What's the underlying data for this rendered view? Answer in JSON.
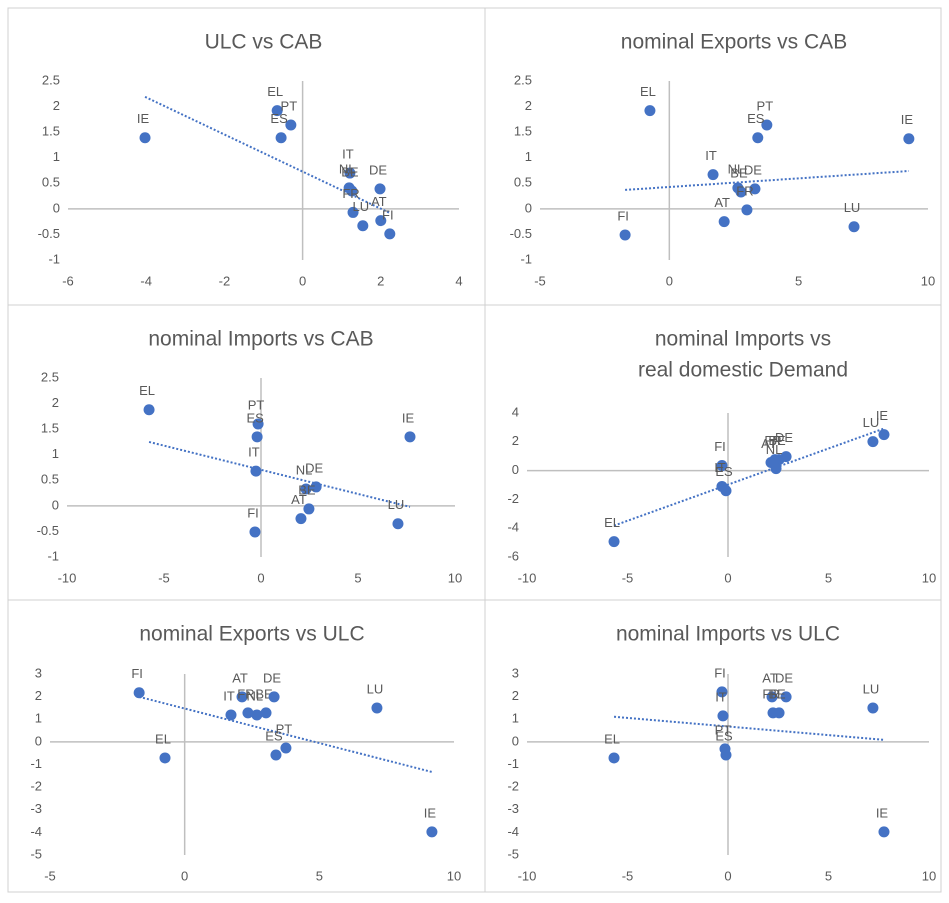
{
  "chart_data": [
    {
      "type": "scatter",
      "title": [
        "ULC vs CAB"
      ],
      "color": "#4472c4",
      "trend_color": "#4472c4",
      "labels": [
        "IE",
        "EL",
        "PT",
        "ES",
        "IT",
        "NL",
        "BE",
        "DE",
        "FR",
        "LU",
        "AT",
        "FI"
      ],
      "x": [
        -4.03,
        -0.65,
        -0.3,
        -0.55,
        1.21,
        1.19,
        1.26,
        1.98,
        1.29,
        1.54,
        2.0,
        2.23
      ],
      "y": [
        1.39,
        1.92,
        1.64,
        1.39,
        0.7,
        0.41,
        0.35,
        0.39,
        -0.07,
        -0.33,
        -0.23,
        -0.49
      ],
      "trend": {
        "x": [
          -4.03,
          2.23
        ],
        "y": [
          2.19,
          -0.08
        ]
      },
      "xlim": [
        -6,
        4
      ],
      "xticks": [
        -6,
        -4,
        -2,
        0,
        2,
        4
      ],
      "ylim": [
        -1,
        2.5
      ],
      "yticks": [
        -1,
        -0.5,
        0,
        0.5,
        1,
        1.5,
        2,
        2.5
      ]
    },
    {
      "type": "scatter",
      "title": [
        "nominal Exports vs CAB"
      ],
      "color": "#4472c4",
      "trend_color": "#4472c4",
      "labels": [
        "EL",
        "PT",
        "ES",
        "IE",
        "IT",
        "NL",
        "DE",
        "BE",
        "FR",
        "AT",
        "LU",
        "FI"
      ],
      "x": [
        -0.75,
        3.77,
        3.42,
        9.26,
        1.69,
        2.65,
        3.31,
        2.77,
        3.0,
        2.12,
        7.14,
        -1.71
      ],
      "y": [
        1.92,
        1.64,
        1.39,
        1.37,
        0.67,
        0.41,
        0.39,
        0.33,
        -0.02,
        -0.25,
        -0.35,
        -0.51
      ],
      "trend": {
        "x": [
          -1.71,
          9.26
        ],
        "y": [
          0.37,
          0.74
        ]
      },
      "xlim": [
        -5,
        10
      ],
      "xticks": [
        -5,
        0,
        5,
        10
      ],
      "ylim": [
        -1,
        2.5
      ],
      "yticks": [
        -1,
        -0.5,
        0,
        0.5,
        1,
        1.5,
        2,
        2.5
      ]
    },
    {
      "type": "scatter",
      "title": [
        "nominal Imports vs CAB"
      ],
      "color": "#4472c4",
      "trend_color": "#4472c4",
      "labels": [
        "EL",
        "PT",
        "ES",
        "IE",
        "IT",
        "DE",
        "NL",
        "BE",
        "AT",
        "LU",
        "FI"
      ],
      "x": [
        -5.77,
        -0.15,
        -0.2,
        7.68,
        -0.26,
        2.84,
        2.32,
        2.47,
        2.06,
        7.06,
        -0.31
      ],
      "y": [
        1.88,
        1.6,
        1.35,
        1.35,
        0.68,
        0.37,
        0.33,
        -0.06,
        -0.25,
        -0.35,
        -0.51
      ],
      "trend": {
        "x": [
          -5.77,
          7.68
        ],
        "y": [
          1.25,
          -0.02
        ]
      },
      "xlim": [
        -10,
        10
      ],
      "xticks": [
        -10,
        -5,
        0,
        5,
        10
      ],
      "ylim": [
        -1,
        2.5
      ],
      "yticks": [
        -1,
        -0.5,
        0,
        0.5,
        1,
        1.5,
        2,
        2.5
      ]
    },
    {
      "type": "scatter",
      "title": [
        "nominal Imports vs",
        "real domestic Demand"
      ],
      "color": "#4472c4",
      "trend_color": "#4472c4",
      "labels": [
        "EL",
        "IE",
        "LU",
        "FI",
        "IT",
        "ES",
        "DE",
        "FR",
        "BE",
        "AT",
        "NL"
      ],
      "x": [
        -5.67,
        7.76,
        7.21,
        -0.3,
        -0.3,
        -0.1,
        2.89,
        2.34,
        2.54,
        2.14,
        2.39
      ],
      "y": [
        -4.93,
        2.5,
        2.01,
        0.35,
        -1.1,
        -1.4,
        0.97,
        0.76,
        0.76,
        0.56,
        0.14
      ],
      "trend": {
        "x": [
          -5.67,
          7.76
        ],
        "y": [
          -3.82,
          2.92
        ]
      },
      "xlim": [
        -10,
        10
      ],
      "xticks": [
        -10,
        -5,
        0,
        5,
        10
      ],
      "ylim": [
        -6,
        4
      ],
      "yticks": [
        -6,
        -4,
        -2,
        0,
        2,
        4
      ]
    },
    {
      "type": "scatter",
      "title": [
        "nominal Exports vs ULC"
      ],
      "color": "#4472c4",
      "trend_color": "#4472c4",
      "labels": [
        "FI",
        "EL",
        "AT",
        "IT",
        "FR",
        "NL",
        "BE",
        "DE",
        "PT",
        "ES",
        "LU",
        "IE"
      ],
      "x": [
        -1.69,
        -0.73,
        2.13,
        1.72,
        2.35,
        2.68,
        3.02,
        3.32,
        3.76,
        3.39,
        7.14,
        9.18
      ],
      "y": [
        2.17,
        -0.71,
        1.99,
        1.19,
        1.28,
        1.19,
        1.28,
        1.99,
        -0.27,
        -0.58,
        1.5,
        -3.98
      ],
      "trend": {
        "x": [
          -1.69,
          9.18
        ],
        "y": [
          1.99,
          -1.33
        ]
      },
      "xlim": [
        -5,
        10
      ],
      "xticks": [
        -5,
        0,
        5,
        10
      ],
      "ylim": [
        -5,
        3
      ],
      "yticks": [
        -5,
        -4,
        -3,
        -2,
        -1,
        0,
        1,
        2,
        3
      ]
    },
    {
      "type": "scatter",
      "title": [
        "nominal Imports vs ULC"
      ],
      "color": "#4472c4",
      "trend_color": "#4472c4",
      "labels": [
        "EL",
        "FI",
        "IT",
        "PT",
        "ES",
        "AT",
        "DE",
        "FR",
        "BE",
        "LU",
        "IE"
      ],
      "x": [
        -5.67,
        -0.3,
        -0.25,
        -0.15,
        -0.1,
        2.19,
        2.89,
        2.24,
        2.54,
        7.21,
        7.76
      ],
      "y": [
        -0.71,
        2.21,
        1.15,
        -0.31,
        -0.58,
        1.99,
        1.99,
        1.28,
        1.28,
        1.5,
        -3.98
      ],
      "trend": {
        "x": [
          -5.67,
          7.76
        ],
        "y": [
          1.11,
          0.09
        ]
      },
      "xlim": [
        -10,
        10
      ],
      "xticks": [
        -10,
        -5,
        0,
        5,
        10
      ],
      "ylim": [
        -5,
        3
      ],
      "yticks": [
        -5,
        -4,
        -3,
        -2,
        -1,
        0,
        1,
        2,
        3
      ]
    }
  ]
}
